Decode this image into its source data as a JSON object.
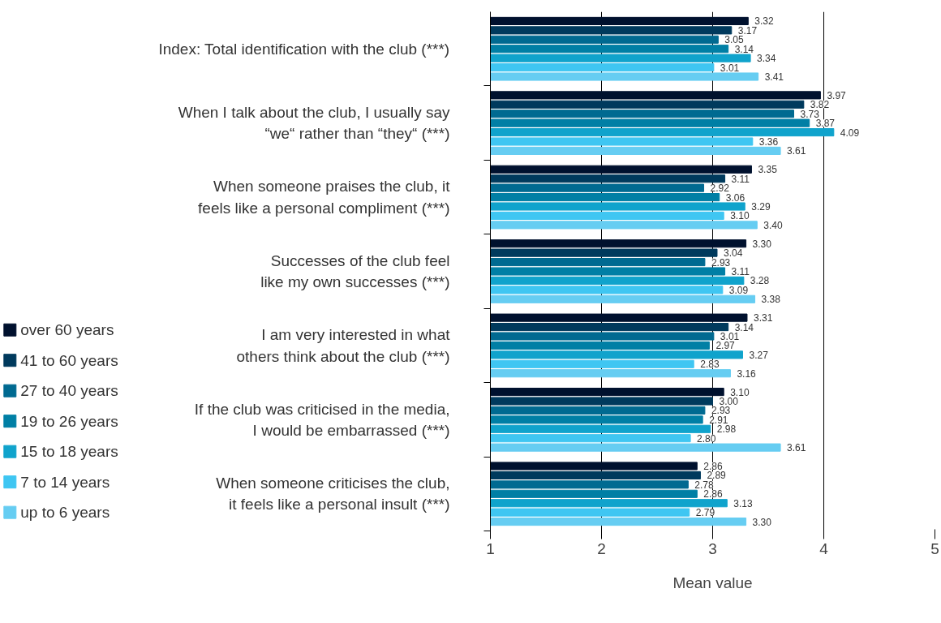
{
  "chart_data": {
    "type": "bar",
    "orientation": "horizontal",
    "xlabel": "Mean value",
    "xlim": [
      1,
      5
    ],
    "xticks": [
      1,
      2,
      3,
      4,
      5
    ],
    "grid": "x",
    "legend": "bottom left",
    "categories": [
      "Index: Total identification with the club (***)",
      "When I talk about the club, I usually say\n“we“ rather than “they“ (***)",
      "When someone praises the club, it\nfeels like a personal compliment (***)",
      "Successes of the club feel\nlike my own successes (***)",
      "I am very interested in what\nothers think about the club (***)",
      "If the club was criticised in the media,\nI would be embarrassed (***)",
      "When someone criticises the club,\nit feels like a personal insult (***)"
    ],
    "series": [
      {
        "name": "over 60 years",
        "color": "#00112e",
        "values": [
          3.32,
          3.97,
          3.35,
          3.3,
          3.31,
          3.1,
          2.86
        ],
        "value_labels": [
          "3.32",
          "3.97",
          "3.35",
          "3.30",
          "3.31",
          "3.10",
          "2.86"
        ]
      },
      {
        "name": "41 to 60 years",
        "color": "#003a5d",
        "values": [
          3.17,
          3.82,
          3.11,
          3.04,
          3.14,
          3.0,
          2.89
        ],
        "value_labels": [
          "3.17",
          "3.82",
          "3.11",
          "3.04",
          "3.14",
          "3.00",
          "2.89"
        ]
      },
      {
        "name": "27 to 40 years",
        "color": "#006a91",
        "values": [
          3.05,
          3.73,
          2.92,
          2.93,
          3.01,
          2.93,
          2.78
        ],
        "value_labels": [
          "3.05",
          "3.73",
          "2.92",
          "2.93",
          "3.01",
          "2.93",
          "2.78"
        ]
      },
      {
        "name": "19 to 26 years",
        "color": "#007fa5",
        "values": [
          3.14,
          3.87,
          3.06,
          3.11,
          2.97,
          2.91,
          2.86
        ],
        "value_labels": [
          "3.14",
          "3.87",
          "3.06",
          "3.11",
          "2.97",
          "2.91",
          "2.86"
        ]
      },
      {
        "name": "15 to 18 years",
        "color": "#10a3cc",
        "values": [
          3.34,
          4.09,
          3.29,
          3.28,
          3.27,
          2.98,
          3.13
        ],
        "value_labels": [
          "3.34",
          "4.09",
          "3.29",
          "3.28",
          "3.27",
          "2.98",
          "3.13"
        ]
      },
      {
        "name": "7 to 14 years",
        "color": "#3fc6f2",
        "values": [
          3.01,
          3.36,
          3.1,
          3.09,
          2.83,
          2.8,
          2.79
        ],
        "value_labels": [
          "3.01",
          "3.36",
          "3.10",
          "3.09",
          "2.83",
          "2.80",
          "2.79"
        ]
      },
      {
        "name": "up to 6 years",
        "color": "#66cdf2",
        "values": [
          3.41,
          3.61,
          3.4,
          3.38,
          3.16,
          3.61,
          3.3
        ],
        "value_labels": [
          "3.41",
          "3.61",
          "3.40",
          "3.38",
          "3.16",
          "3.61",
          "3.30"
        ]
      }
    ]
  }
}
